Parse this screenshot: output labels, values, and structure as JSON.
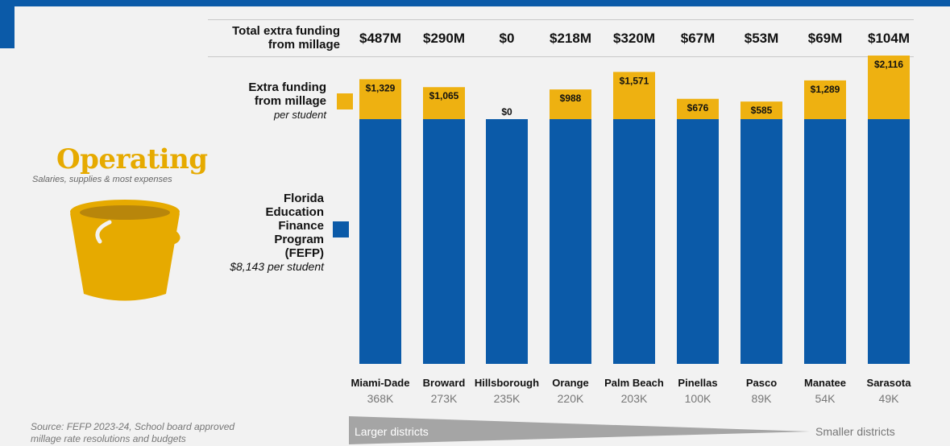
{
  "header": {
    "total_label": "Total extra funding\nfrom millage"
  },
  "legend": {
    "millage_label": "Extra funding\nfrom millage",
    "millage_sub": "per student",
    "fefp_label": "Florida\nEducation\nFinance\nProgram\n(FEFP)",
    "fefp_sub": "$8,143 per student"
  },
  "operating": {
    "title": "Operating",
    "subtitle": "Salaries, supplies & most expenses"
  },
  "colors": {
    "fefp": "#0b5aa8",
    "millage": "#eeb111",
    "bucket": "#e6aa00"
  },
  "arrow": {
    "left_label": "Larger districts",
    "right_label": "Smaller districts"
  },
  "source": "Source: FEFP 2023-24, School board approved\nmillage rate resolutions and budgets",
  "chart_data": {
    "type": "bar",
    "stacked": true,
    "categories": [
      "Miami-Dade",
      "Broward",
      "Hillsborough",
      "Orange",
      "Palm Beach",
      "Pinellas",
      "Pasco",
      "Manatee",
      "Sarasota"
    ],
    "enrollment": [
      "368K",
      "273K",
      "235K",
      "220K",
      "203K",
      "100K",
      "89K",
      "54K",
      "49K"
    ],
    "total_funding": [
      "$487M",
      "$290M",
      "$0",
      "$218M",
      "$320M",
      "$67M",
      "$53M",
      "$69M",
      "$104M"
    ],
    "series": [
      {
        "name": "Florida Education Finance Program (FEFP)",
        "values": [
          8143,
          8143,
          8143,
          8143,
          8143,
          8143,
          8143,
          8143,
          8143
        ]
      },
      {
        "name": "Extra funding from millage",
        "values": [
          1329,
          1065,
          0,
          988,
          1571,
          676,
          585,
          1289,
          2116
        ],
        "labels": [
          "$1,329",
          "$1,065",
          "$0",
          "$988",
          "$1,571",
          "$676",
          "$585",
          "$1,289",
          "$2,116"
        ]
      }
    ]
  }
}
